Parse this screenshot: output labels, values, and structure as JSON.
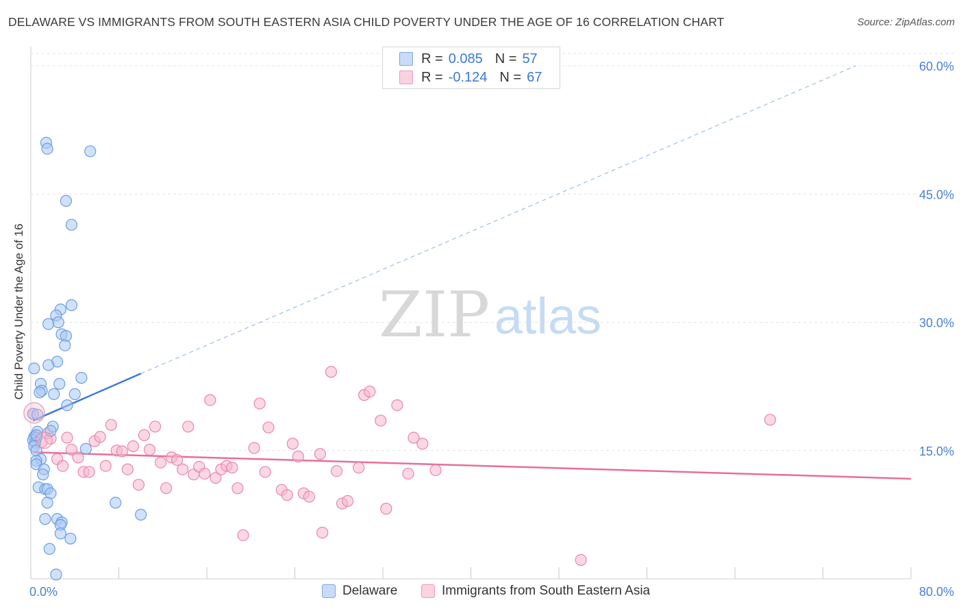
{
  "chart_data": {
    "type": "scatter",
    "title": "DELAWARE VS IMMIGRANTS FROM SOUTH EASTERN ASIA CHILD POVERTY UNDER THE AGE OF 16 CORRELATION CHART",
    "source": "Source: ZipAtlas.com",
    "xlabel": "",
    "ylabel": "Child Poverty Under the Age of 16",
    "xlim": [
      0,
      80
    ],
    "ylim": [
      0,
      60
    ],
    "x_tick_labels": [
      "0.0%",
      "80.0%"
    ],
    "y_tick_labels": [
      "15.0%",
      "30.0%",
      "45.0%",
      "60.0%"
    ],
    "y_tick_values": [
      15,
      30,
      45,
      60
    ],
    "grid": true,
    "watermark": {
      "zip": "ZIP",
      "atlas": "atlas"
    },
    "legend_stats": [
      {
        "r_label": "R =",
        "r_value": "0.085",
        "n_label": "N =",
        "n_value": "57",
        "color": "#a9c8f5"
      },
      {
        "r_label": "R =",
        "r_value": "-0.124",
        "n_label": "N =",
        "n_value": "67",
        "color": "#f7b8cc"
      }
    ],
    "series": [
      {
        "name": "Delaware",
        "color": "#a9c8f5",
        "stroke": "#6b9de0",
        "trend": {
          "x0": 0.2,
          "y0": 18.5,
          "x1": 10,
          "y1": 24.0,
          "dash_x1": 75,
          "dash_y1": 60,
          "color": "#3b78d8"
        },
        "points": [
          [
            1.4,
            51.0
          ],
          [
            1.5,
            50.3
          ],
          [
            5.4,
            50.0
          ],
          [
            3.2,
            44.2
          ],
          [
            3.7,
            41.4
          ],
          [
            3.7,
            32.0
          ],
          [
            2.7,
            31.5
          ],
          [
            2.3,
            30.8
          ],
          [
            1.6,
            29.8
          ],
          [
            2.5,
            30.0
          ],
          [
            2.8,
            28.6
          ],
          [
            3.2,
            28.4
          ],
          [
            3.1,
            27.3
          ],
          [
            2.4,
            25.4
          ],
          [
            1.6,
            25.0
          ],
          [
            0.3,
            24.6
          ],
          [
            4.6,
            23.5
          ],
          [
            0.9,
            22.8
          ],
          [
            2.6,
            22.8
          ],
          [
            1.0,
            22.0
          ],
          [
            0.8,
            21.8
          ],
          [
            2.1,
            21.6
          ],
          [
            4.0,
            21.6
          ],
          [
            3.3,
            20.3
          ],
          [
            0.2,
            19.3
          ],
          [
            0.6,
            19.2
          ],
          [
            2.0,
            17.8
          ],
          [
            0.6,
            17.2
          ],
          [
            1.8,
            17.3
          ],
          [
            0.3,
            16.6
          ],
          [
            0.5,
            16.5
          ],
          [
            0.2,
            16.2
          ],
          [
            0.4,
            15.9
          ],
          [
            0.3,
            15.5
          ],
          [
            5.0,
            15.2
          ],
          [
            0.5,
            15.0
          ],
          [
            0.9,
            14.0
          ],
          [
            0.5,
            13.8
          ],
          [
            0.5,
            13.4
          ],
          [
            1.2,
            12.8
          ],
          [
            1.1,
            12.2
          ],
          [
            0.7,
            10.7
          ],
          [
            1.3,
            10.5
          ],
          [
            1.5,
            10.5
          ],
          [
            1.8,
            10.0
          ],
          [
            7.7,
            8.9
          ],
          [
            1.5,
            8.9
          ],
          [
            10.0,
            7.5
          ],
          [
            1.3,
            7.0
          ],
          [
            2.4,
            7.0
          ],
          [
            2.8,
            6.6
          ],
          [
            2.7,
            6.3
          ],
          [
            2.7,
            5.3
          ],
          [
            3.6,
            4.7
          ],
          [
            1.7,
            3.5
          ],
          [
            2.3,
            0.5
          ],
          [
            0.5,
            16.8
          ]
        ]
      },
      {
        "name": "Immigrants from South Eastern Asia",
        "color": "#f7b8cc",
        "stroke": "#e887a7",
        "trend": {
          "x0": 0.2,
          "y0": 14.8,
          "x1": 80,
          "y1": 11.7,
          "color": "#e96d99"
        },
        "points": [
          [
            0.2,
            19.3
          ],
          [
            1.0,
            16.0
          ],
          [
            1.5,
            17.0
          ],
          [
            2.4,
            14.0
          ],
          [
            2.9,
            13.2
          ],
          [
            3.3,
            16.5
          ],
          [
            3.7,
            15.1
          ],
          [
            4.3,
            14.2
          ],
          [
            4.8,
            12.5
          ],
          [
            5.3,
            12.5
          ],
          [
            5.8,
            16.1
          ],
          [
            6.3,
            16.6
          ],
          [
            6.8,
            13.2
          ],
          [
            7.3,
            18.0
          ],
          [
            7.8,
            15.0
          ],
          [
            8.3,
            14.9
          ],
          [
            8.8,
            12.8
          ],
          [
            9.3,
            15.5
          ],
          [
            9.8,
            11.0
          ],
          [
            10.3,
            16.8
          ],
          [
            10.8,
            15.1
          ],
          [
            11.3,
            17.8
          ],
          [
            11.8,
            13.6
          ],
          [
            12.3,
            10.6
          ],
          [
            12.8,
            14.2
          ],
          [
            13.3,
            13.9
          ],
          [
            13.8,
            12.8
          ],
          [
            14.3,
            17.8
          ],
          [
            14.8,
            12.2
          ],
          [
            15.3,
            13.1
          ],
          [
            15.8,
            12.3
          ],
          [
            16.3,
            20.9
          ],
          [
            16.8,
            11.8
          ],
          [
            17.3,
            12.8
          ],
          [
            17.8,
            13.2
          ],
          [
            18.3,
            13.0
          ],
          [
            18.8,
            10.6
          ],
          [
            19.3,
            5.1
          ],
          [
            20.3,
            15.3
          ],
          [
            20.8,
            20.5
          ],
          [
            21.3,
            12.5
          ],
          [
            21.6,
            17.7
          ],
          [
            22.8,
            10.4
          ],
          [
            23.3,
            9.8
          ],
          [
            23.8,
            15.8
          ],
          [
            24.3,
            14.3
          ],
          [
            24.8,
            10.0
          ],
          [
            25.3,
            9.6
          ],
          [
            26.3,
            14.6
          ],
          [
            26.5,
            5.4
          ],
          [
            27.3,
            24.2
          ],
          [
            27.8,
            12.6
          ],
          [
            28.3,
            8.8
          ],
          [
            28.8,
            9.1
          ],
          [
            29.8,
            13.0
          ],
          [
            30.3,
            21.5
          ],
          [
            30.8,
            21.9
          ],
          [
            31.8,
            18.5
          ],
          [
            32.3,
            8.2
          ],
          [
            33.3,
            20.3
          ],
          [
            34.3,
            12.3
          ],
          [
            34.8,
            16.5
          ],
          [
            35.6,
            15.8
          ],
          [
            36.8,
            12.7
          ],
          [
            50.0,
            2.2
          ],
          [
            67.2,
            18.6
          ],
          [
            1.8,
            16.4
          ]
        ]
      }
    ]
  }
}
